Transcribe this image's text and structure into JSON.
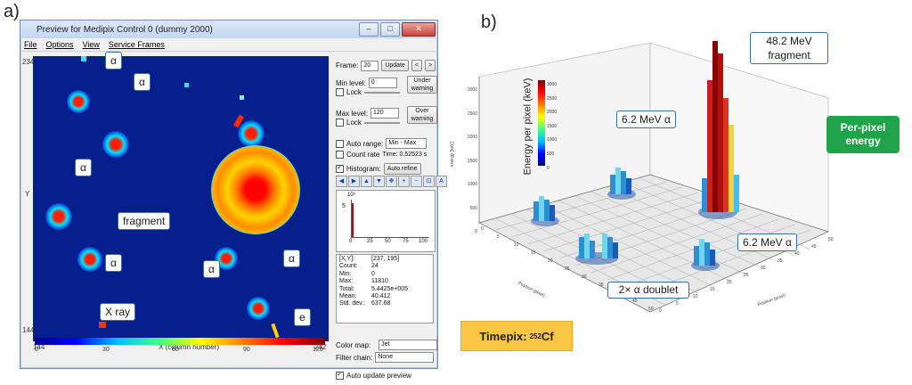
{
  "panels": {
    "a": "a)",
    "b": "b)"
  },
  "window": {
    "title": "Preview for Medipix Control 0 (dummy 2000)",
    "min_glyph": "–",
    "max_glyph": "□",
    "close_glyph": "✕",
    "menu": [
      "File",
      "Options",
      "View",
      "Service Frames"
    ]
  },
  "preview": {
    "y_top": "234",
    "y_bottom": "144",
    "y_label": "Y",
    "x_left": "144",
    "x_right": "242",
    "x_label": "X (column number)",
    "colorbar_ticks": [
      "0",
      "30",
      "60",
      "90",
      "120"
    ]
  },
  "controls": {
    "frame_label": "Frame:",
    "frame_value": "20",
    "update": "Update",
    "prev": "<",
    "next": ">",
    "min_level_label": "Min level:",
    "min_level_value": "0",
    "under_warning": "Under warning",
    "lock": "Lock",
    "max_level_label": "Max level:",
    "max_level_value": "120",
    "over_warning": "Over warning",
    "auto_range": "Auto range:",
    "auto_range_value": "Min - Max",
    "count_rate": "Count rate",
    "time": "Time: 0.52523 s",
    "histogram": "Histogram:",
    "auto_refine": "Auto refine",
    "hist_ylabel": "10³",
    "hist_y": "5",
    "hist_x": [
      "0",
      "25",
      "50",
      "75",
      "100"
    ],
    "color_map_label": "Color map:",
    "color_map_value": "Jet",
    "filter_chain_label": "Filter chain:",
    "filter_chain_value": "None",
    "auto_update": "Auto update preview"
  },
  "stats": [
    {
      "k": "[X,Y]:",
      "v": "[237, 195]"
    },
    {
      "k": "Count:",
      "v": "24"
    },
    {
      "k": "Min:",
      "v": "0"
    },
    {
      "k": "Max:",
      "v": "11810"
    },
    {
      "k": "Total:",
      "v": "5.4425e+005"
    },
    {
      "k": "Mean:",
      "v": "40.412"
    },
    {
      "k": "Std. dev.:",
      "v": "637.68"
    }
  ],
  "callouts_a": {
    "a1": "α",
    "a2": "α",
    "a3": "α",
    "a4": "α",
    "a5": "α",
    "a6": "α",
    "fragment": "fragment",
    "xray": "X ray",
    "e": "e"
  },
  "plot3d": {
    "zlabel": "energy [keV]",
    "z_ticks": [
      "0",
      "500",
      "1000",
      "1500",
      "2000",
      "2500",
      "3000"
    ],
    "cb_label": "Energy per pixel (keV)",
    "cb_ticks": [
      "0",
      "500",
      "1000",
      "1500",
      "2000",
      "2500",
      "3000"
    ],
    "xlabel": "Position (pixel)",
    "ylabel": "Position (pixel)",
    "x_ticks": [
      "0",
      "5",
      "10",
      "15",
      "20",
      "25",
      "30",
      "35",
      "40",
      "45",
      "50"
    ],
    "y_ticks": [
      "0",
      "5",
      "10",
      "15",
      "20",
      "25",
      "30",
      "35",
      "40",
      "45",
      "50"
    ],
    "callouts": {
      "frag": "48.2 MeV fragment",
      "alpha1": "6.2 MeV α",
      "alpha2": "6.2 MeV α",
      "doublet": "2× α doublet",
      "perpixel": "Per-pixel energy"
    },
    "timepix_prefix": "Timepix: ",
    "timepix_sup": "252",
    "timepix_el": "Cf"
  },
  "colors": {
    "blue_bg": "#061f8c",
    "callout_border": "#3b6ea6",
    "green": "#1fa44a",
    "gold": "#f9c744"
  }
}
